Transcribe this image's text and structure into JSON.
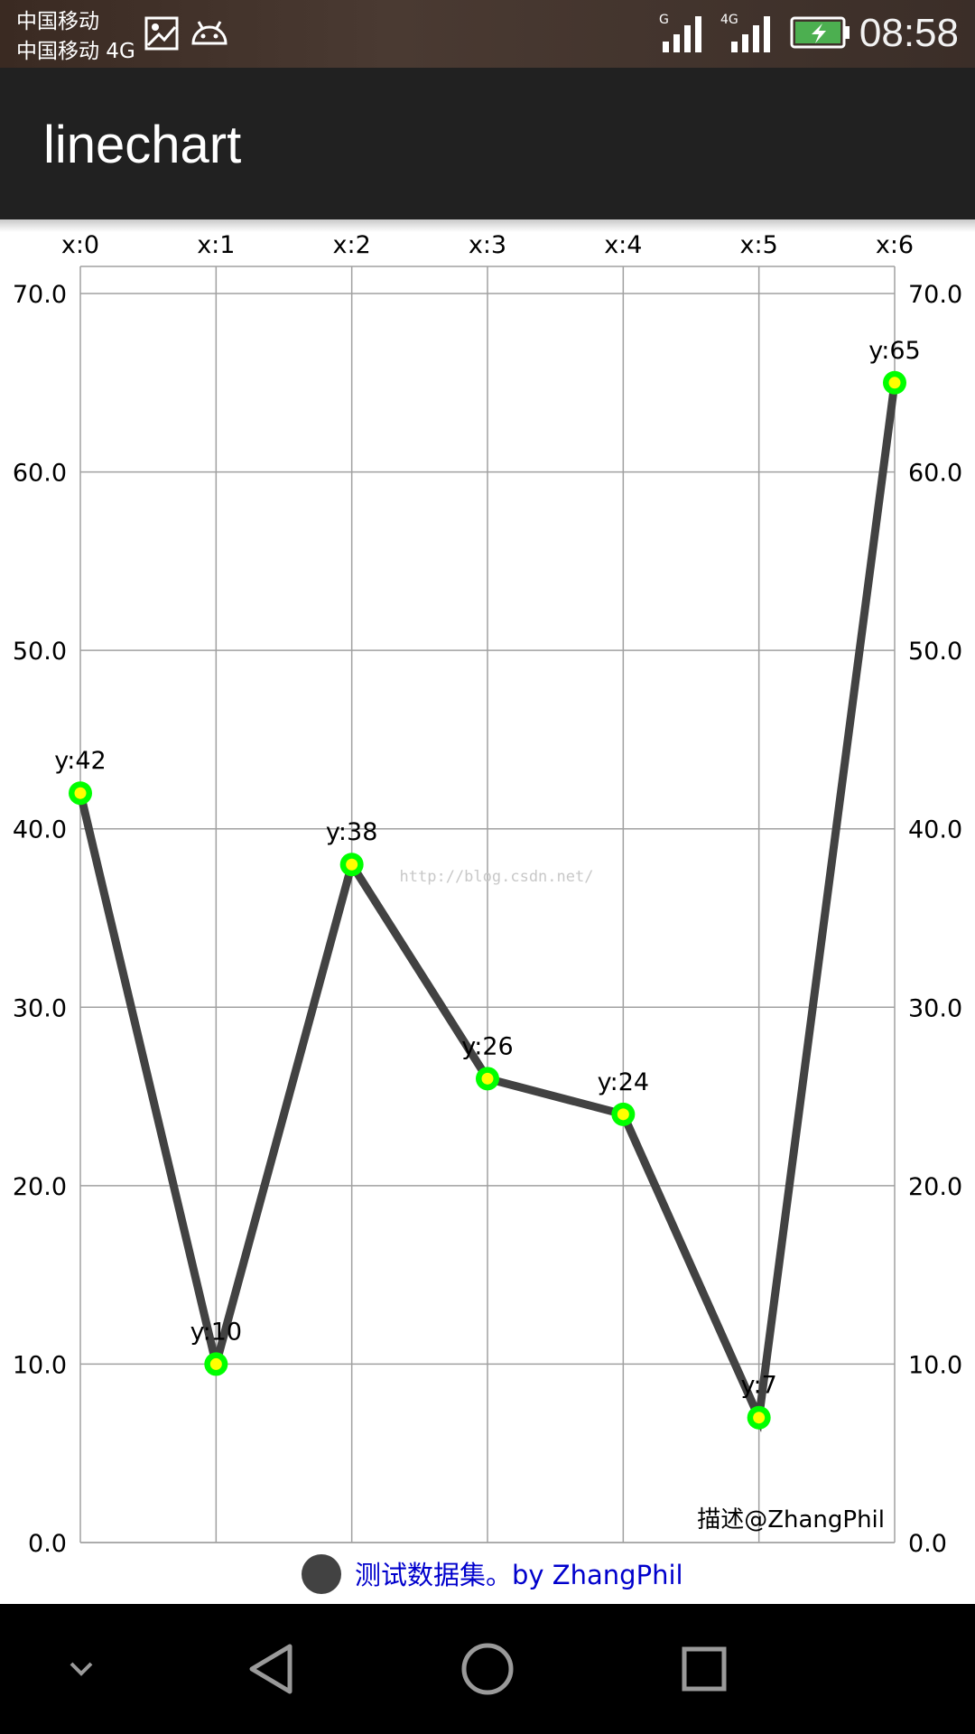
{
  "status_bar": {
    "carrier_line1": "中国移动",
    "carrier_line2": "中国移动 4G",
    "signal1_label": "G",
    "signal2_label": "4G",
    "time": "08:58",
    "icons": [
      "gallery-icon",
      "android-icon",
      "signal-icon",
      "signal-icon",
      "battery-charging-icon"
    ]
  },
  "app_bar": {
    "title": "linechart"
  },
  "chart_data": {
    "type": "line",
    "x": [
      "x:0",
      "x:1",
      "x:2",
      "x:3",
      "x:4",
      "x:5",
      "x:6"
    ],
    "values": [
      42,
      10,
      38,
      26,
      24,
      7,
      65
    ],
    "value_labels": [
      "y:42",
      "y:10",
      "y:38",
      "y:26",
      "y:24",
      "y:7",
      "y:65"
    ],
    "ylim": [
      0,
      70
    ],
    "y_ticks": [
      "0.0",
      "10.0",
      "20.0",
      "30.0",
      "40.0",
      "50.0",
      "60.0",
      "70.0"
    ],
    "x_axis_position": "top",
    "y_axis_both_sides": true,
    "grid": true,
    "description": "描述@ZhangPhil",
    "watermark": "http://blog.csdn.net/",
    "legend": {
      "label": "测试数据集。by ZhangPhil",
      "position": "bottom-center"
    },
    "colors": {
      "line": "#424242",
      "circle_outer": "#00ff00",
      "circle_inner": "#ffff00",
      "legend_text": "#0000cc",
      "grid": "#a0a0a0"
    }
  },
  "nav_bar": {
    "icons": [
      "chevron-down-icon",
      "back-icon",
      "home-icon",
      "recents-icon"
    ]
  }
}
